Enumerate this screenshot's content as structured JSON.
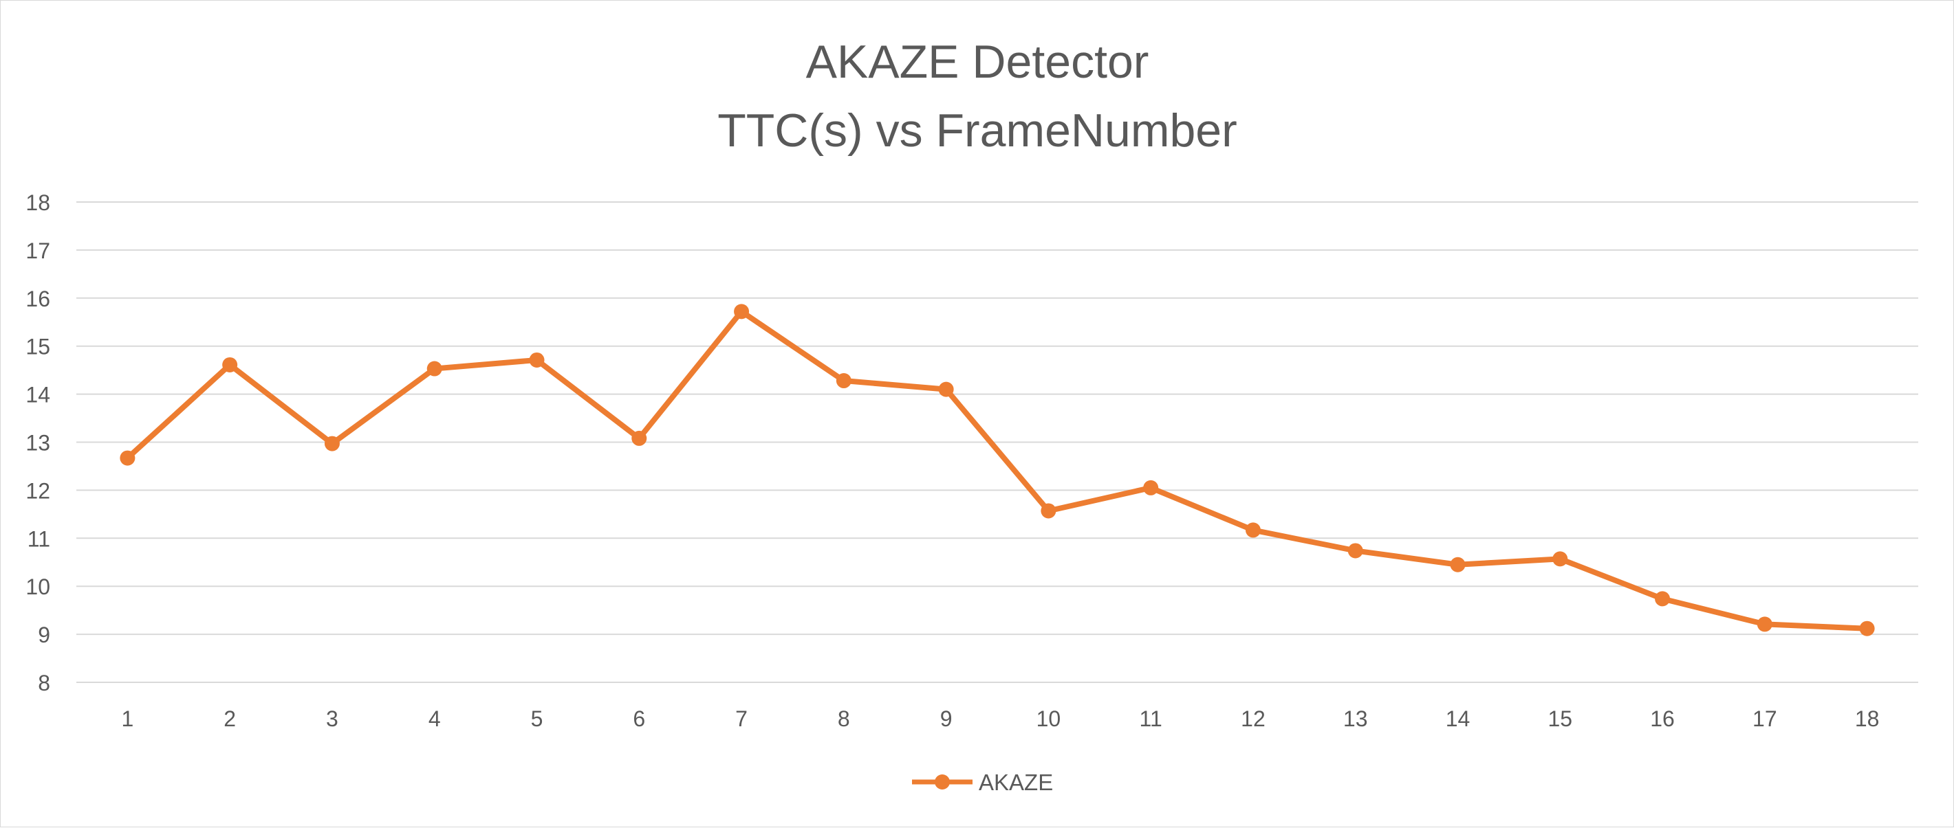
{
  "chart_data": {
    "type": "line",
    "title": "AKAZE Detector",
    "subtitle": "TTC(s) vs FrameNumber",
    "xlabel": "",
    "ylabel": "",
    "categories": [
      "1",
      "2",
      "3",
      "4",
      "5",
      "6",
      "7",
      "8",
      "9",
      "10",
      "11",
      "12",
      "13",
      "14",
      "15",
      "16",
      "17",
      "18"
    ],
    "series": [
      {
        "name": "AKAZE",
        "color": "#ED7D31",
        "values": [
          12.67,
          14.61,
          12.97,
          14.53,
          14.71,
          13.08,
          15.72,
          14.28,
          14.1,
          11.57,
          12.05,
          11.17,
          10.74,
          10.45,
          10.57,
          9.74,
          9.21,
          9.12
        ]
      }
    ],
    "ylim": [
      8,
      18
    ],
    "yticks": [
      8,
      9,
      10,
      11,
      12,
      13,
      14,
      15,
      16,
      17,
      18
    ],
    "grid": true,
    "legend_position": "bottom"
  }
}
